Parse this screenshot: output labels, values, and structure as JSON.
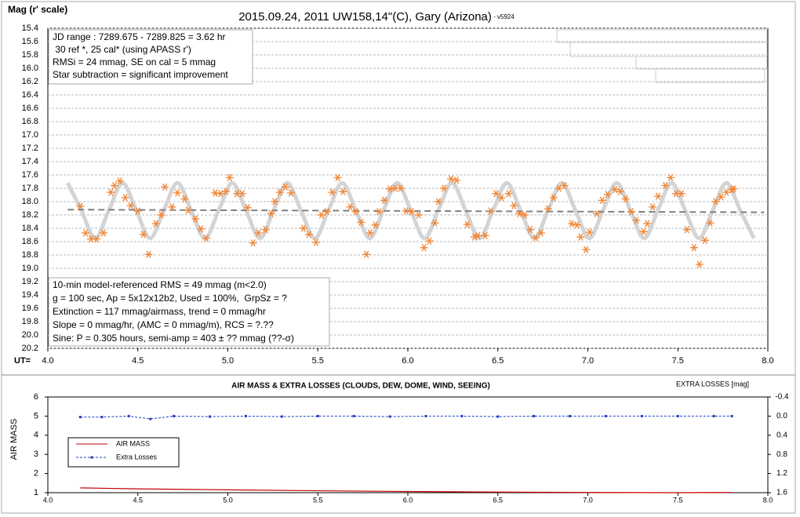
{
  "chart_data": [
    {
      "type": "scatter",
      "title": "2015.09.24, 2011 UW158,14\"(C), Gary (Arizona)",
      "title_note": " - v5924",
      "ylabel": "Mag (r' scale)",
      "xlabel": "UT=",
      "xlim": [
        4,
        8
      ],
      "xticks": [
        {
          "value": 4,
          "label": "4.0"
        },
        4.5,
        {
          "value": 5,
          "label": "5.0"
        },
        5.5,
        {
          "value": 6,
          "label": "6.0"
        },
        6.5,
        {
          "value": 7,
          "label": "7.0"
        },
        7.5,
        {
          "value": 8,
          "label": "8.0"
        }
      ],
      "ylim": [
        15.4,
        20.2
      ],
      "y_reversed": true,
      "yticks": [
        15.4,
        15.6,
        15.8,
        {
          "value": 16,
          "label": "16.0"
        },
        16.2,
        16.4,
        16.6,
        16.8,
        {
          "value": 17,
          "label": "17.0"
        },
        17.2,
        17.4,
        17.6,
        17.8,
        {
          "value": 18,
          "label": "18.0"
        },
        18.2,
        18.4,
        18.6,
        18.8,
        {
          "value": 19,
          "label": "19.0"
        },
        19.2,
        19.4,
        19.6,
        19.8,
        {
          "value": 20,
          "label": "20.0"
        },
        20.2
      ],
      "grid": true,
      "series": [
        {
          "type": "fit",
          "color": "#d4d4d4",
          "x": [
            4.11,
            4.186,
            4.263,
            4.339,
            4.415,
            4.491,
            4.568,
            4.644,
            4.72,
            4.796,
            4.873,
            4.949,
            5.025,
            5.101,
            5.178,
            5.254,
            5.33,
            5.406,
            5.483,
            5.559,
            5.635,
            5.711,
            5.788,
            5.864,
            5.94,
            6.016,
            6.093,
            6.169,
            6.245,
            6.321,
            6.398,
            6.474,
            6.55,
            6.626,
            6.703,
            6.779,
            6.855,
            6.931,
            7.008,
            7.084,
            7.16,
            7.236,
            7.313,
            7.389,
            7.465,
            7.541,
            7.618,
            7.694,
            7.77,
            7.846,
            7.923
          ],
          "values": [
            17.72,
            18.13,
            18.55,
            18.13,
            17.72,
            18.13,
            18.55,
            18.13,
            17.72,
            18.13,
            18.55,
            18.13,
            17.72,
            18.13,
            18.55,
            18.13,
            17.72,
            18.13,
            18.55,
            18.13,
            17.72,
            18.13,
            18.55,
            18.13,
            17.72,
            18.13,
            18.55,
            18.13,
            17.72,
            18.13,
            18.55,
            18.13,
            17.72,
            18.13,
            18.55,
            18.13,
            17.72,
            18.13,
            18.55,
            18.13,
            17.72,
            18.13,
            18.55,
            18.13,
            17.72,
            18.13,
            18.55,
            18.13,
            17.72,
            18.13,
            18.55
          ]
        },
        {
          "type": "trend",
          "color": "#808080",
          "x": [
            4.11,
            7.98
          ],
          "values": [
            18.12,
            18.16
          ]
        },
        {
          "type": "points",
          "color": "#f0883a",
          "x": [
            4.18,
            4.21,
            4.24,
            4.27,
            4.31,
            4.35,
            4.37,
            4.4,
            4.43,
            4.46,
            4.5,
            4.53,
            4.56,
            4.6,
            4.63,
            4.65,
            4.69,
            4.72,
            4.76,
            4.78,
            4.82,
            4.85,
            4.88,
            4.93,
            4.96,
            4.99,
            5.01,
            5.05,
            5.08,
            5.11,
            5.14,
            5.17,
            5.21,
            5.24,
            5.26,
            5.29,
            5.32,
            5.35,
            5.42,
            5.45,
            5.49,
            5.52,
            5.55,
            5.58,
            5.61,
            5.64,
            5.68,
            5.71,
            5.74,
            5.77,
            5.79,
            5.82,
            5.84,
            5.87,
            5.9,
            5.93,
            5.96,
            5.99,
            6.02,
            6.06,
            6.09,
            6.12,
            6.15,
            6.17,
            6.2,
            6.24,
            6.27,
            6.33,
            6.37,
            6.39,
            6.43,
            6.46,
            6.49,
            6.52,
            6.56,
            6.59,
            6.62,
            6.65,
            6.68,
            6.71,
            6.74,
            6.78,
            6.81,
            6.84,
            6.87,
            6.91,
            6.94,
            6.96,
            6.99,
            7.01,
            7.05,
            7.08,
            7.11,
            7.15,
            7.18,
            7.21,
            7.24,
            7.27,
            7.31,
            7.33,
            7.36,
            7.39,
            7.43,
            7.46,
            7.49,
            7.52,
            7.55,
            7.59,
            7.62,
            7.65,
            7.68,
            7.71,
            7.74,
            7.77,
            7.8,
            7.81
          ],
          "values": [
            18.07,
            18.47,
            18.56,
            18.56,
            18.47,
            17.86,
            17.76,
            17.69,
            17.94,
            18.06,
            18.14,
            18.49,
            18.79,
            18.33,
            18.2,
            17.78,
            18.08,
            17.87,
            17.96,
            18.13,
            18.26,
            18.41,
            18.55,
            17.87,
            17.88,
            17.85,
            17.64,
            17.88,
            17.88,
            18.09,
            18.62,
            18.47,
            18.42,
            18.18,
            18.0,
            17.86,
            17.78,
            17.87,
            18.4,
            18.49,
            18.61,
            18.2,
            18.15,
            17.86,
            17.64,
            17.85,
            18.08,
            18.15,
            18.31,
            18.79,
            18.47,
            18.35,
            18.15,
            17.98,
            17.81,
            17.8,
            17.8,
            18.14,
            18.15,
            18.2,
            18.69,
            18.59,
            18.32,
            18.0,
            17.8,
            17.66,
            17.68,
            18.34,
            18.53,
            18.51,
            18.51,
            18.14,
            17.88,
            17.94,
            17.88,
            18.06,
            18.18,
            18.2,
            18.42,
            18.54,
            18.47,
            18.11,
            17.94,
            17.8,
            17.76,
            18.33,
            18.35,
            18.53,
            18.72,
            18.46,
            18.18,
            17.98,
            17.89,
            17.82,
            17.85,
            17.96,
            18.15,
            18.28,
            18.45,
            18.33,
            18.08,
            17.92,
            17.76,
            17.64,
            17.88,
            17.88,
            18.42,
            18.69,
            18.94,
            18.58,
            18.32,
            18.0,
            17.93,
            17.86,
            17.82,
            17.81
          ]
        }
      ],
      "annotations": [
        {
          "lines": [
            "JD range : 7289.675 - 7289.825 = 3.62 hr",
            " 30 ref *, 25 cal* (using APASS r')",
            "RMSi = 24 mmag, SE on cal = 5 mmag",
            "Star subtraction = significant improvement"
          ]
        },
        {
          "lines": [
            "10-min model-referenced RMS = 49 mmag (m<2.0)",
            "g = 100 sec, Ap = 5x12x12b2, Used = 100%,  GrpSz = ?",
            "Extinction = 117 mmag/airmass, trend = 0 mmag/hr",
            "Slope = 0 mmag/hr, (AMC = 0 mmag/m), RCS = ?.??",
            "Sine: P = 0.305 hours, semi-amp = 403 ± ?? mmag (??-σ)"
          ]
        }
      ]
    },
    {
      "type": "line",
      "title": "AIR MASS & EXTRA LOSSES (CLOUDS, DEW, DOME, WIND, SEEING)",
      "ylabel": "AIR MASS",
      "y2label": "EXTRA LOSSES [mag]",
      "xlim": [
        4,
        8
      ],
      "xticks": [
        {
          "value": 4,
          "label": "4.0"
        },
        4.5,
        {
          "value": 5,
          "label": "5.0"
        },
        5.5,
        {
          "value": 6,
          "label": "6.0"
        },
        6.5,
        {
          "value": 7,
          "label": "7.0"
        },
        7.5,
        {
          "value": 8,
          "label": "8.0"
        }
      ],
      "ylim": [
        1,
        6
      ],
      "yticks": [
        1,
        2,
        3,
        4,
        5,
        6
      ],
      "y2lim": [
        -0.4,
        1.6
      ],
      "y2_reversed": true,
      "y2ticks": [
        -0.4,
        {
          "value": 0,
          "label": "0.0"
        },
        0.4,
        0.8,
        1.2,
        1.6
      ],
      "series": [
        {
          "name": "AIR MASS",
          "color": "#c00000",
          "x": [
            4.18,
            4.5,
            5.0,
            5.5,
            6.0,
            6.5,
            7.0,
            7.5,
            7.8
          ],
          "values": [
            1.25,
            1.2,
            1.15,
            1.1,
            1.06,
            1.03,
            1.01,
            1.0,
            1.01
          ]
        },
        {
          "name": "Extra Losses",
          "color": "#1f3fbf",
          "axis": "y2",
          "x": [
            4.18,
            4.3,
            4.45,
            4.57,
            4.7,
            4.9,
            5.1,
            5.3,
            5.5,
            5.7,
            5.9,
            6.1,
            6.3,
            6.5,
            6.7,
            6.9,
            7.1,
            7.3,
            7.5,
            7.7,
            7.8
          ],
          "values": [
            0.02,
            0.02,
            0.0,
            0.06,
            0.0,
            0.01,
            0.0,
            0.01,
            0.0,
            0.0,
            0.01,
            0.0,
            0.0,
            0.01,
            0.0,
            0.0,
            0.0,
            0.0,
            0.0,
            0.0,
            0.0
          ]
        }
      ]
    }
  ]
}
